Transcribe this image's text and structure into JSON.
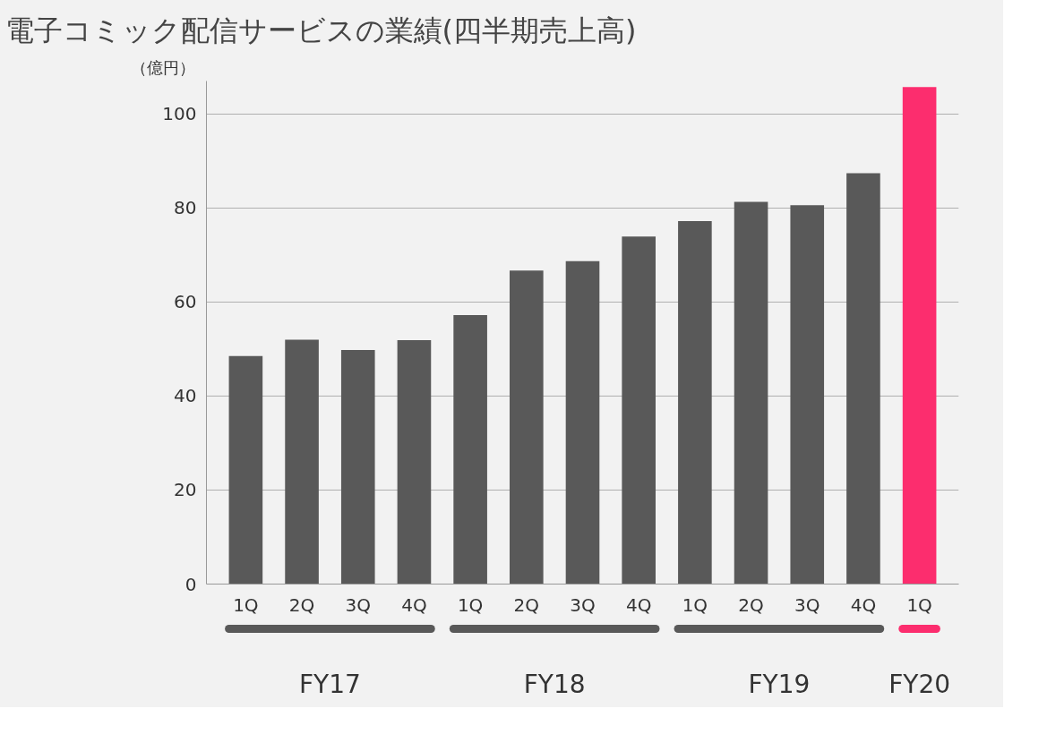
{
  "chart_data": {
    "type": "bar",
    "title": "電子コミック配信サービスの業績(四半期売上高)",
    "ylabel": "（億円）",
    "categories": [
      "1Q",
      "2Q",
      "3Q",
      "4Q",
      "1Q",
      "2Q",
      "3Q",
      "4Q",
      "1Q",
      "2Q",
      "3Q",
      "4Q",
      "1Q"
    ],
    "values": [
      48.5,
      52.0,
      49.8,
      51.9,
      57.2,
      66.7,
      68.7,
      73.9,
      77.2,
      81.3,
      80.6,
      87.4,
      105.7
    ],
    "colors": [
      "#595959",
      "#595959",
      "#595959",
      "#595959",
      "#595959",
      "#595959",
      "#595959",
      "#595959",
      "#595959",
      "#595959",
      "#595959",
      "#595959",
      "#fc2d6e"
    ],
    "ylim": [
      0,
      107
    ],
    "yticks": [
      0,
      20,
      40,
      60,
      80,
      100
    ],
    "grid": "y",
    "annotations": [
      "FY17",
      "FY18",
      "FY19",
      "FY20"
    ]
  }
}
